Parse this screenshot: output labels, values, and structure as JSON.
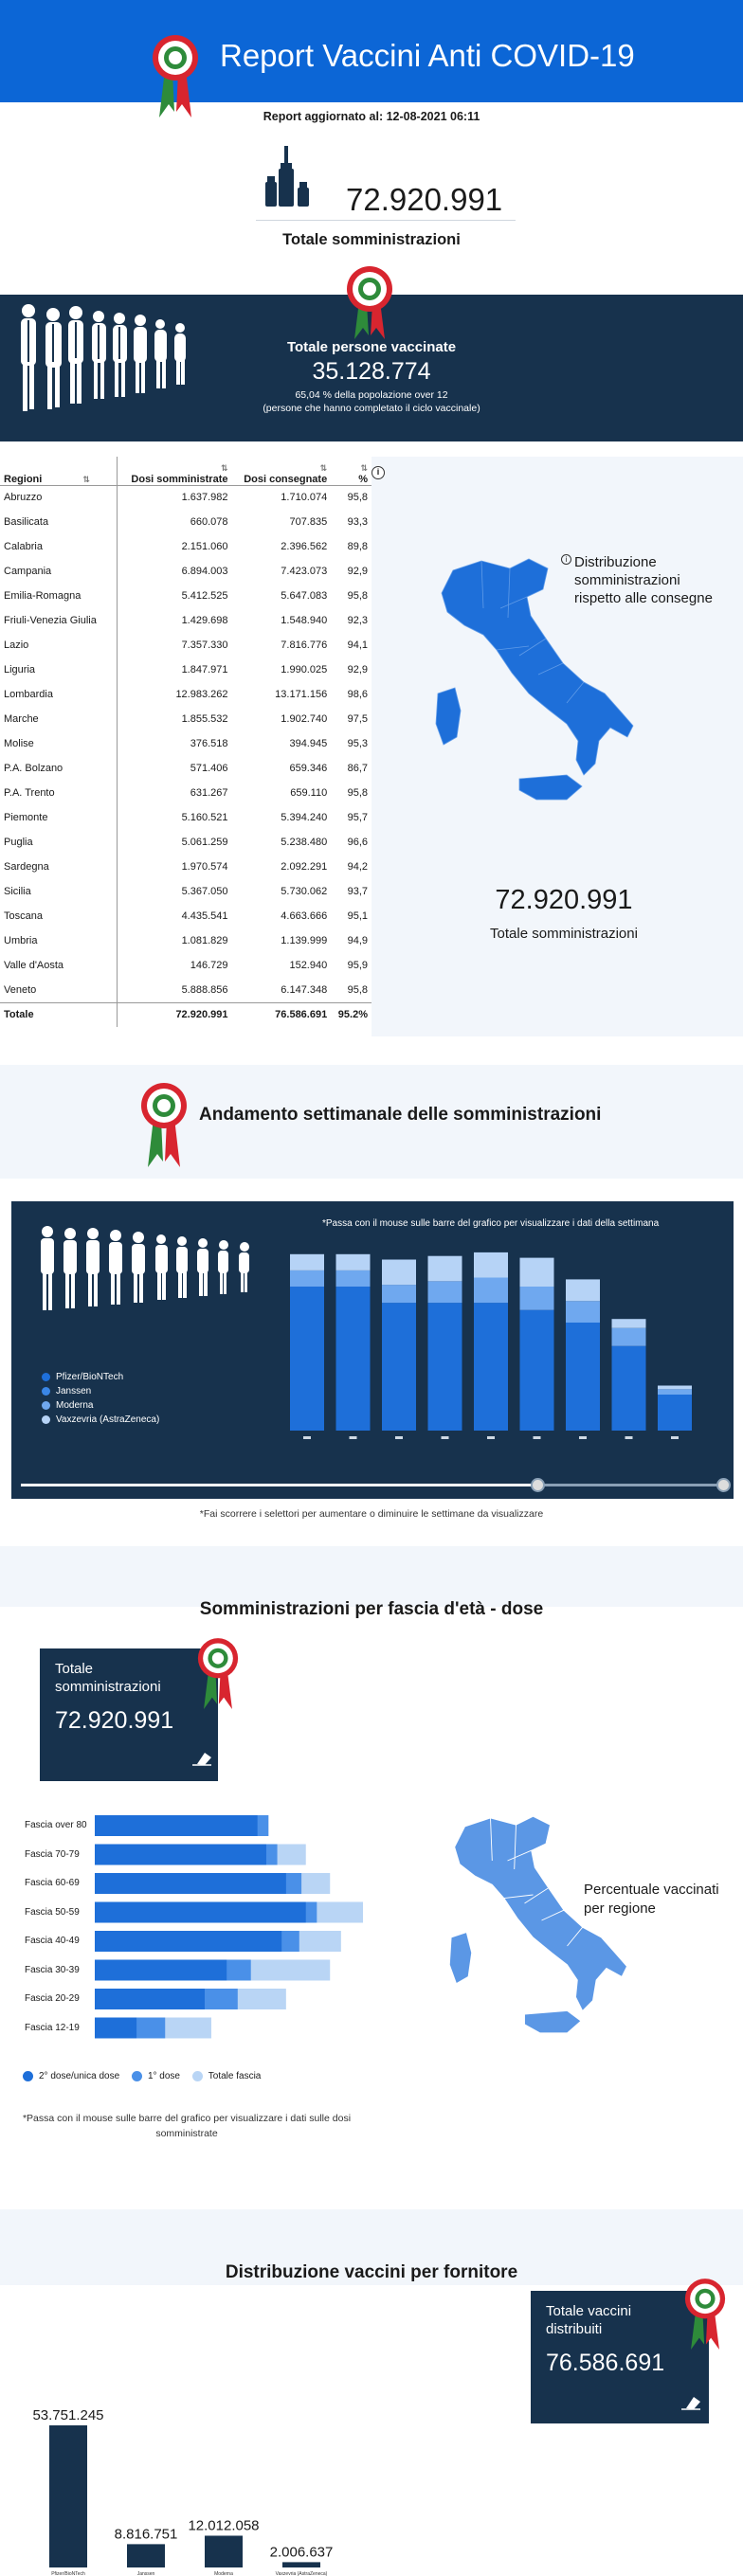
{
  "header": {
    "title": "Report Vaccini Anti COVID-19"
  },
  "updated": "Report aggiornato al: 12-08-2021 06:11",
  "totale": {
    "value": "72.920.991",
    "label": "Totale somministrazioni"
  },
  "vaccinati": {
    "title": "Totale persone vaccinate",
    "value": "35.128.774",
    "line1": "65,04 % della popolazione over 12",
    "line2": "(persone che hanno completato il ciclo vaccinale)"
  },
  "table": {
    "headers": [
      "Regioni",
      "Dosi somministrate",
      "Dosi consegnate",
      "%"
    ],
    "rows": [
      [
        "Abruzzo",
        "1.637.982",
        "1.710.074",
        "95,8"
      ],
      [
        "Basilicata",
        "660.078",
        "707.835",
        "93,3"
      ],
      [
        "Calabria",
        "2.151.060",
        "2.396.562",
        "89,8"
      ],
      [
        "Campania",
        "6.894.003",
        "7.423.073",
        "92,9"
      ],
      [
        "Emilia-Romagna",
        "5.412.525",
        "5.647.083",
        "95,8"
      ],
      [
        "Friuli-Venezia Giulia",
        "1.429.698",
        "1.548.940",
        "92,3"
      ],
      [
        "Lazio",
        "7.357.330",
        "7.816.776",
        "94,1"
      ],
      [
        "Liguria",
        "1.847.971",
        "1.990.025",
        "92,9"
      ],
      [
        "Lombardia",
        "12.983.262",
        "13.171.156",
        "98,6"
      ],
      [
        "Marche",
        "1.855.532",
        "1.902.740",
        "97,5"
      ],
      [
        "Molise",
        "376.518",
        "394.945",
        "95,3"
      ],
      [
        "P.A. Bolzano",
        "571.406",
        "659.346",
        "86,7"
      ],
      [
        "P.A. Trento",
        "631.267",
        "659.110",
        "95,8"
      ],
      [
        "Piemonte",
        "5.160.521",
        "5.394.240",
        "95,7"
      ],
      [
        "Puglia",
        "5.061.259",
        "5.238.480",
        "96,6"
      ],
      [
        "Sardegna",
        "1.970.574",
        "2.092.291",
        "94,2"
      ],
      [
        "Sicilia",
        "5.367.050",
        "5.730.062",
        "93,7"
      ],
      [
        "Toscana",
        "4.435.541",
        "4.663.666",
        "95,1"
      ],
      [
        "Umbria",
        "1.081.829",
        "1.139.999",
        "94,9"
      ],
      [
        "Valle d'Aosta",
        "146.729",
        "152.940",
        "95,9"
      ],
      [
        "Veneto",
        "5.888.856",
        "6.147.348",
        "95,8"
      ]
    ],
    "total": [
      "Totale",
      "72.920.991",
      "76.586.691",
      "95.2%"
    ]
  },
  "map1": {
    "caption": "Distribuzione somministrazioni rispetto alle consegne",
    "value": "72.920.991",
    "label": "Totale somministrazioni"
  },
  "weekly": {
    "title": "Andamento settimanale delle somministrazioni",
    "hint": "*Passa con il mouse sulle barre del grafico per visualizzare i dati della settimana",
    "legend": [
      "Pfizer/BioNTech",
      "Janssen",
      "Moderna",
      "Vaxzevria (AstraZeneca)"
    ],
    "colors": [
      "#1e6fd9",
      "#3a86e6",
      "#6fa8ef",
      "#b6d3f6"
    ],
    "note": "*Fai scorrere i selettori per aumentare o diminuire le settimane da visualizzare"
  },
  "chart_data": [
    {
      "type": "bar",
      "stacked": true,
      "series": [
        {
          "name": "Pfizer/BioNTech",
          "values": [
            0.8,
            0.8,
            0.71,
            0.71,
            0.71,
            0.67,
            0.6,
            0.47,
            0.2
          ]
        },
        {
          "name": "Janssen",
          "values": [
            0.0,
            0.0,
            0.0,
            0.0,
            0.0,
            0.0,
            0.0,
            0.0,
            0.0
          ]
        },
        {
          "name": "Moderna",
          "values": [
            0.09,
            0.09,
            0.1,
            0.12,
            0.14,
            0.13,
            0.12,
            0.1,
            0.03
          ]
        },
        {
          "name": "Vaxzevria (AstraZeneca)",
          "values": [
            0.09,
            0.09,
            0.14,
            0.14,
            0.14,
            0.16,
            0.12,
            0.05,
            0.02
          ]
        }
      ],
      "ylim": [
        0,
        1
      ]
    },
    {
      "type": "bar",
      "orientation": "horizontal",
      "categories": [
        "Fascia over 80",
        "Fascia 70-79",
        "Fascia 60-69",
        "Fascia 50-59",
        "Fascia 40-49",
        "Fascia 30-39",
        "Fascia 20-29",
        "Fascia 12-19"
      ],
      "series": [
        {
          "name": "2° dose/unica dose",
          "values": [
            0.74,
            0.78,
            0.87,
            0.96,
            0.85,
            0.6,
            0.5,
            0.19
          ]
        },
        {
          "name": "1° dose",
          "values": [
            0.05,
            0.05,
            0.07,
            0.05,
            0.08,
            0.11,
            0.15,
            0.13
          ]
        },
        {
          "name": "Totale fascia",
          "values": [
            0.79,
            0.96,
            1.07,
            1.22,
            1.12,
            1.07,
            0.87,
            0.53
          ]
        }
      ],
      "xlim": [
        0,
        1.25
      ]
    },
    {
      "type": "bar",
      "categories": [
        "Pfizer/BioNTech",
        "Janssen",
        "Moderna",
        "Vaxzevria (AstraZeneca)"
      ],
      "values": [
        53751245,
        8816751,
        12012058,
        2006637
      ],
      "labels": [
        "53.751.245",
        "8.816.751",
        "12.012.058",
        "2.006.637"
      ]
    }
  ],
  "ages": {
    "title": "Somministrazioni per fascia d'età - dose",
    "card_label": "Totale somministrazioni",
    "card_value": "72.920.991",
    "legend": [
      "2° dose/unica dose",
      "1° dose",
      "Totale fascia"
    ],
    "colors": [
      "#1e6fd9",
      "#4a90e8",
      "#b9d5f5"
    ],
    "note": "*Passa con il mouse sulle barre del grafico per visualizzare i dati sulle dosi somministrate",
    "map_caption": "Percentuale vaccinati per regione"
  },
  "suppliers": {
    "title": "Distribuzione vaccini per fornitore",
    "card_label": "Totale vaccini distribuiti",
    "card_value": "76.586.691"
  }
}
